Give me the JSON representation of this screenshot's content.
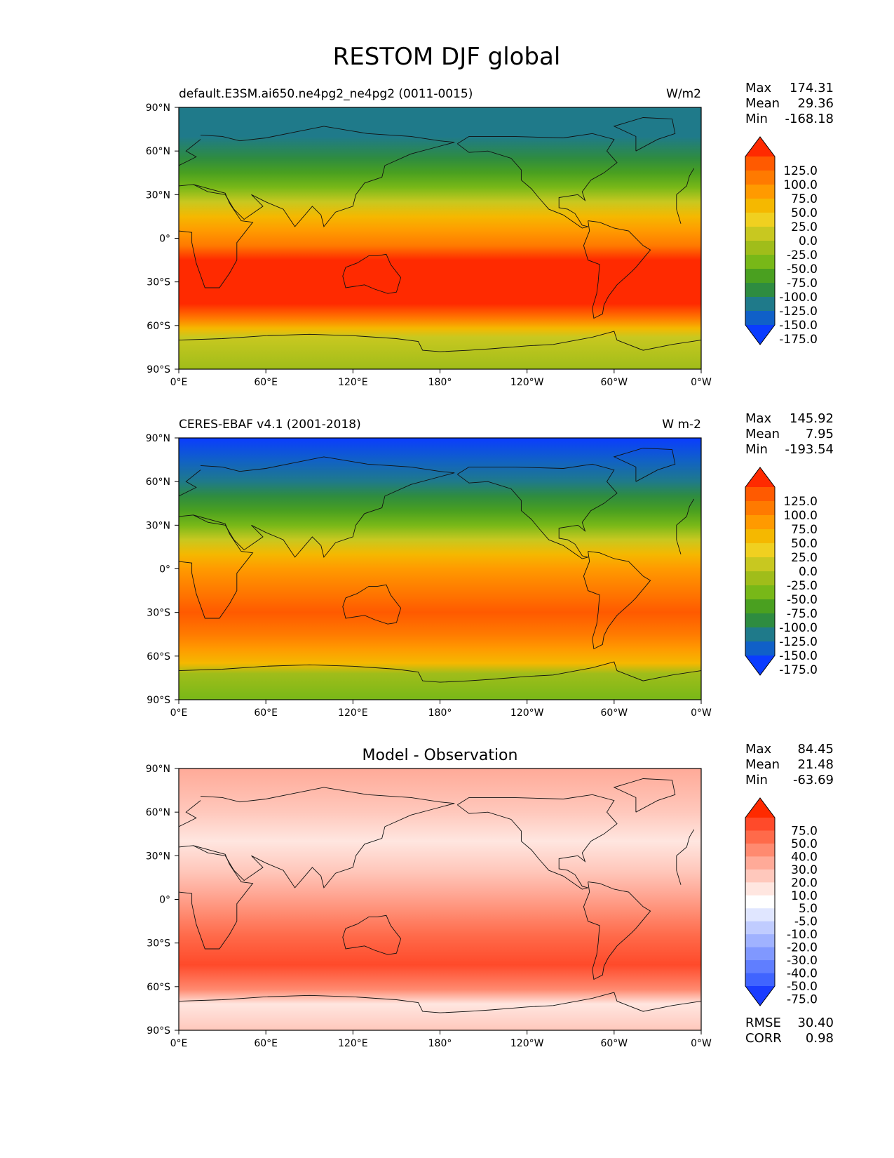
{
  "title": "RESTOM DJF global",
  "lon_ticks": [
    "0°E",
    "60°E",
    "120°E",
    "180°",
    "120°W",
    "60°W",
    "0°W"
  ],
  "lat_ticks": [
    "90°N",
    "60°N",
    "30°N",
    "0°",
    "30°S",
    "60°S",
    "90°S"
  ],
  "stat_labels": {
    "max": "Max",
    "mean": "Mean",
    "min": "Min",
    "rmse": "RMSE",
    "corr": "CORR"
  },
  "panels": [
    {
      "left_title": "default.E3SM.ai650.ne4pg2_ne4pg2 (0011-0015)",
      "center_title": "",
      "units": "W/m2",
      "stats": {
        "max": "174.31",
        "mean": "29.36",
        "min": "-168.18"
      },
      "colorbar": {
        "labels": [
          "125.0",
          "100.0",
          "75.0",
          "50.0",
          "25.0",
          "0.0",
          "-25.0",
          "-50.0",
          "-75.0",
          "-100.0",
          "-125.0",
          "-150.0",
          "-175.0"
        ],
        "colors": [
          "#ff2a00",
          "#ff5a00",
          "#ff7a00",
          "#ff9a00",
          "#f5b800",
          "#f0d020",
          "#c8c820",
          "#a0bd1a",
          "#78b818",
          "#4aa020",
          "#2e8c40",
          "#1f7a8a",
          "#1060c8",
          "#0a3cff"
        ]
      },
      "map": {
        "lat_bands": [
          {
            "lat": 90,
            "color": "#1f7a8a"
          },
          {
            "lat": 70,
            "color": "#1f7a8a"
          },
          {
            "lat": 55,
            "color": "#2e8c40"
          },
          {
            "lat": 45,
            "color": "#4aa020"
          },
          {
            "lat": 35,
            "color": "#78b818"
          },
          {
            "lat": 25,
            "color": "#c8c820"
          },
          {
            "lat": 15,
            "color": "#f5b800"
          },
          {
            "lat": 5,
            "color": "#ff9a00"
          },
          {
            "lat": -5,
            "color": "#ff7a00"
          },
          {
            "lat": -15,
            "color": "#ff2a00"
          },
          {
            "lat": -45,
            "color": "#ff2a00"
          },
          {
            "lat": -55,
            "color": "#ff7a00"
          },
          {
            "lat": -62,
            "color": "#f5b800"
          },
          {
            "lat": -68,
            "color": "#c8c820"
          },
          {
            "lat": -90,
            "color": "#a0bd1a"
          }
        ]
      }
    },
    {
      "left_title": "CERES-EBAF v4.1 (2001-2018)",
      "center_title": "",
      "units": "W m-2",
      "stats": {
        "max": "145.92",
        "mean": "7.95",
        "min": "-193.54"
      },
      "colorbar": {
        "labels": [
          "125.0",
          "100.0",
          "75.0",
          "50.0",
          "25.0",
          "0.0",
          "-25.0",
          "-50.0",
          "-75.0",
          "-100.0",
          "-125.0",
          "-150.0",
          "-175.0"
        ],
        "colors": [
          "#ff2a00",
          "#ff5a00",
          "#ff7a00",
          "#ff9a00",
          "#f5b800",
          "#f0d020",
          "#c8c820",
          "#a0bd1a",
          "#78b818",
          "#4aa020",
          "#2e8c40",
          "#1f7a8a",
          "#1060c8",
          "#0a3cff"
        ]
      },
      "map": {
        "lat_bands": [
          {
            "lat": 90,
            "color": "#0a3cff"
          },
          {
            "lat": 75,
            "color": "#1060c8"
          },
          {
            "lat": 60,
            "color": "#1f7a8a"
          },
          {
            "lat": 50,
            "color": "#2e8c40"
          },
          {
            "lat": 40,
            "color": "#4aa020"
          },
          {
            "lat": 30,
            "color": "#78b818"
          },
          {
            "lat": 20,
            "color": "#c8c820"
          },
          {
            "lat": 10,
            "color": "#f5b800"
          },
          {
            "lat": 0,
            "color": "#ff9a00"
          },
          {
            "lat": -15,
            "color": "#ff7a00"
          },
          {
            "lat": -30,
            "color": "#ff5a00"
          },
          {
            "lat": -45,
            "color": "#ff7a00"
          },
          {
            "lat": -55,
            "color": "#ff9a00"
          },
          {
            "lat": -65,
            "color": "#f5b800"
          },
          {
            "lat": -72,
            "color": "#a0bd1a"
          },
          {
            "lat": -90,
            "color": "#78b818"
          }
        ]
      }
    },
    {
      "left_title": "",
      "center_title": "Model - Observation",
      "units": "",
      "stats": {
        "max": "84.45",
        "mean": "21.48",
        "min": "-63.69",
        "rmse": "30.40",
        "corr": "0.98"
      },
      "colorbar": {
        "labels": [
          "75.0",
          "50.0",
          "40.0",
          "30.0",
          "20.0",
          "10.0",
          "5.0",
          "-5.0",
          "-10.0",
          "-20.0",
          "-30.0",
          "-40.0",
          "-50.0",
          "-75.0"
        ],
        "colors": [
          "#ff2a00",
          "#ff4a2a",
          "#ff6a4a",
          "#ff8a70",
          "#ffaa98",
          "#ffc8bc",
          "#ffe6e0",
          "#ffffff",
          "#e0e6ff",
          "#c0ccff",
          "#a0b2ff",
          "#8098ff",
          "#607eff",
          "#4064ff",
          "#1a3cff"
        ]
      },
      "map": {
        "lat_bands": [
          {
            "lat": 90,
            "color": "#ffaa98"
          },
          {
            "lat": 60,
            "color": "#ffc8bc"
          },
          {
            "lat": 40,
            "color": "#ffe6e0"
          },
          {
            "lat": 20,
            "color": "#ffc8bc"
          },
          {
            "lat": 5,
            "color": "#ffaa98"
          },
          {
            "lat": -10,
            "color": "#ff8a70"
          },
          {
            "lat": -25,
            "color": "#ff6a4a"
          },
          {
            "lat": -45,
            "color": "#ff4a2a"
          },
          {
            "lat": -62,
            "color": "#ff8a70"
          },
          {
            "lat": -72,
            "color": "#ffe6e0"
          },
          {
            "lat": -90,
            "color": "#ffc8bc"
          }
        ]
      }
    }
  ]
}
